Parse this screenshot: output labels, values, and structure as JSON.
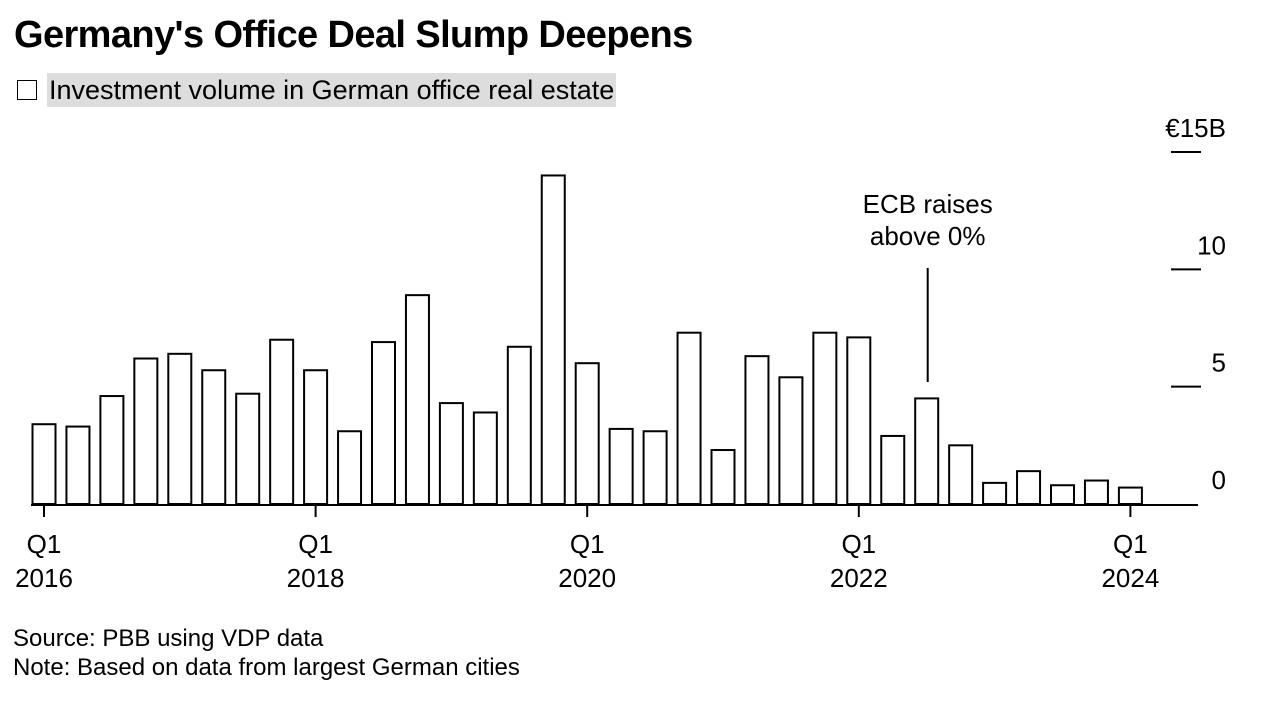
{
  "header": {
    "title": "Germany's Office Deal Slump Deepens"
  },
  "legend": {
    "label": "Investment volume in German office real estate"
  },
  "footer": {
    "source": "Source: PBB using VDP data",
    "note": "Note: Based on data from largest German cities"
  },
  "chart_data": {
    "type": "bar",
    "title": "Germany's Office Deal Slump Deepens",
    "xlabel": "",
    "ylabel": "",
    "y_unit_label": "€15B",
    "ylim": [
      0,
      15
    ],
    "yticks": [
      0,
      5,
      10,
      15
    ],
    "ytick_labels": [
      "0",
      "5",
      "10",
      "€15B"
    ],
    "y_axis_side": "right",
    "grid": false,
    "bar_fill": "#ffffff",
    "bar_stroke": "#000000",
    "categories": [
      "Q1 2016",
      "Q2 2016",
      "Q3 2016",
      "Q4 2016",
      "Q1 2017",
      "Q2 2017",
      "Q3 2017",
      "Q4 2017",
      "Q1 2018",
      "Q2 2018",
      "Q3 2018",
      "Q4 2018",
      "Q1 2019",
      "Q2 2019",
      "Q3 2019",
      "Q4 2019",
      "Q1 2020",
      "Q2 2020",
      "Q3 2020",
      "Q4 2020",
      "Q1 2021",
      "Q2 2021",
      "Q3 2021",
      "Q4 2021",
      "Q1 2022",
      "Q2 2022",
      "Q3 2022",
      "Q4 2022",
      "Q1 2023",
      "Q2 2023",
      "Q3 2023",
      "Q4 2023",
      "Q1 2024"
    ],
    "series": [
      {
        "values": [
          3.4,
          3.3,
          4.6,
          6.2,
          6.4,
          5.7,
          4.7,
          7.0,
          5.7,
          3.1,
          6.9,
          8.9,
          4.3,
          3.9,
          6.7,
          14.0,
          6.0,
          3.2,
          3.1,
          7.3,
          2.3,
          6.3,
          5.4,
          7.3,
          7.1,
          2.9,
          4.5,
          2.5,
          0.9,
          1.4,
          0.8,
          1.0,
          0.7
        ]
      }
    ],
    "x_tick_labels": [
      {
        "index": 0,
        "quarter": "Q1",
        "year": "2016"
      },
      {
        "index": 8,
        "quarter": "Q1",
        "year": "2018"
      },
      {
        "index": 16,
        "quarter": "Q1",
        "year": "2020"
      },
      {
        "index": 24,
        "quarter": "Q1",
        "year": "2022"
      },
      {
        "index": 32,
        "quarter": "Q1",
        "year": "2024"
      }
    ],
    "annotations": [
      {
        "text_line1": "ECB raises",
        "text_line2": "above 0%",
        "category": "Q3 2022",
        "value": 10
      }
    ]
  }
}
